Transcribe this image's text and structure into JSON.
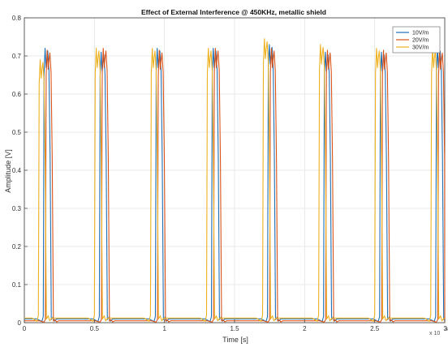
{
  "chart_data": {
    "type": "line",
    "title": "Effect of External Interference @ 450KHz, metallic shield",
    "xlabel": "Time [s]",
    "ylabel": "Amplitude [V]",
    "x_multiplier_label": "x 10",
    "x_multiplier_exponent": "-4",
    "xlim": [
      0,
      3
    ],
    "ylim": [
      0,
      0.8
    ],
    "x_unit_scale": 0.0001,
    "x_ticks": [
      0,
      0.5,
      1,
      1.5,
      2,
      2.5,
      3
    ],
    "x_tick_labels": [
      "0",
      "0.5",
      "1",
      "1.5",
      "2",
      "2.5",
      "3"
    ],
    "y_ticks": [
      0,
      0.1,
      0.2,
      0.3,
      0.4,
      0.5,
      0.6,
      0.7,
      0.8
    ],
    "y_tick_labels": [
      "0",
      "0.1",
      "0.2",
      "0.3",
      "0.4",
      "0.5",
      "0.6",
      "0.7",
      "0.8"
    ],
    "grid": true,
    "legend_position": "top-right",
    "pulse_period": 0.4,
    "series": [
      {
        "name": "10V/m",
        "color": "#1f6fb4",
        "baseline": 0.01,
        "pulses": [
          {
            "t": 0.16,
            "peak": 0.72
          },
          {
            "t": 0.56,
            "peak": 0.71
          },
          {
            "t": 0.96,
            "peak": 0.72
          },
          {
            "t": 1.36,
            "peak": 0.72
          },
          {
            "t": 1.76,
            "peak": 0.73
          },
          {
            "t": 2.16,
            "peak": 0.71
          },
          {
            "t": 2.56,
            "peak": 0.71
          },
          {
            "t": 2.96,
            "peak": 0.72
          }
        ]
      },
      {
        "name": "20V/m",
        "color": "#d9541a",
        "baseline": 0.005,
        "pulses": [
          {
            "t": 0.175,
            "peak": 0.715
          },
          {
            "t": 0.575,
            "peak": 0.72
          },
          {
            "t": 0.975,
            "peak": 0.715
          },
          {
            "t": 1.375,
            "peak": 0.72
          },
          {
            "t": 1.775,
            "peak": 0.72
          },
          {
            "t": 2.175,
            "peak": 0.715
          },
          {
            "t": 2.575,
            "peak": 0.715
          },
          {
            "t": 2.975,
            "peak": 0.715
          }
        ]
      },
      {
        "name": "30V/m",
        "color": "#edb120",
        "baseline": 0.012,
        "pulses": [
          {
            "t": 0.125,
            "peak": 0.69
          },
          {
            "t": 0.525,
            "peak": 0.72
          },
          {
            "t": 0.925,
            "peak": 0.72
          },
          {
            "t": 1.325,
            "peak": 0.72
          },
          {
            "t": 1.725,
            "peak": 0.745
          },
          {
            "t": 2.125,
            "peak": 0.73
          },
          {
            "t": 2.525,
            "peak": 0.72
          },
          {
            "t": 2.925,
            "peak": 0.72
          }
        ]
      }
    ]
  }
}
